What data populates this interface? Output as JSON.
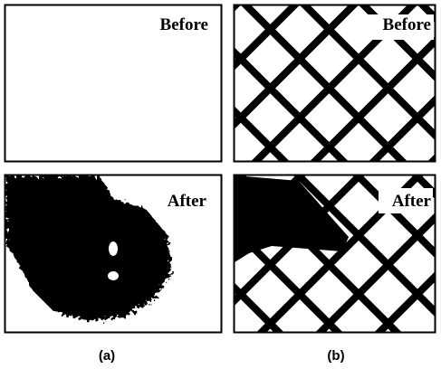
{
  "panels": [
    {
      "before": "Before",
      "after": "After",
      "caption": "(a)"
    },
    {
      "before": "Before",
      "after": "After",
      "caption": "(b)"
    }
  ]
}
